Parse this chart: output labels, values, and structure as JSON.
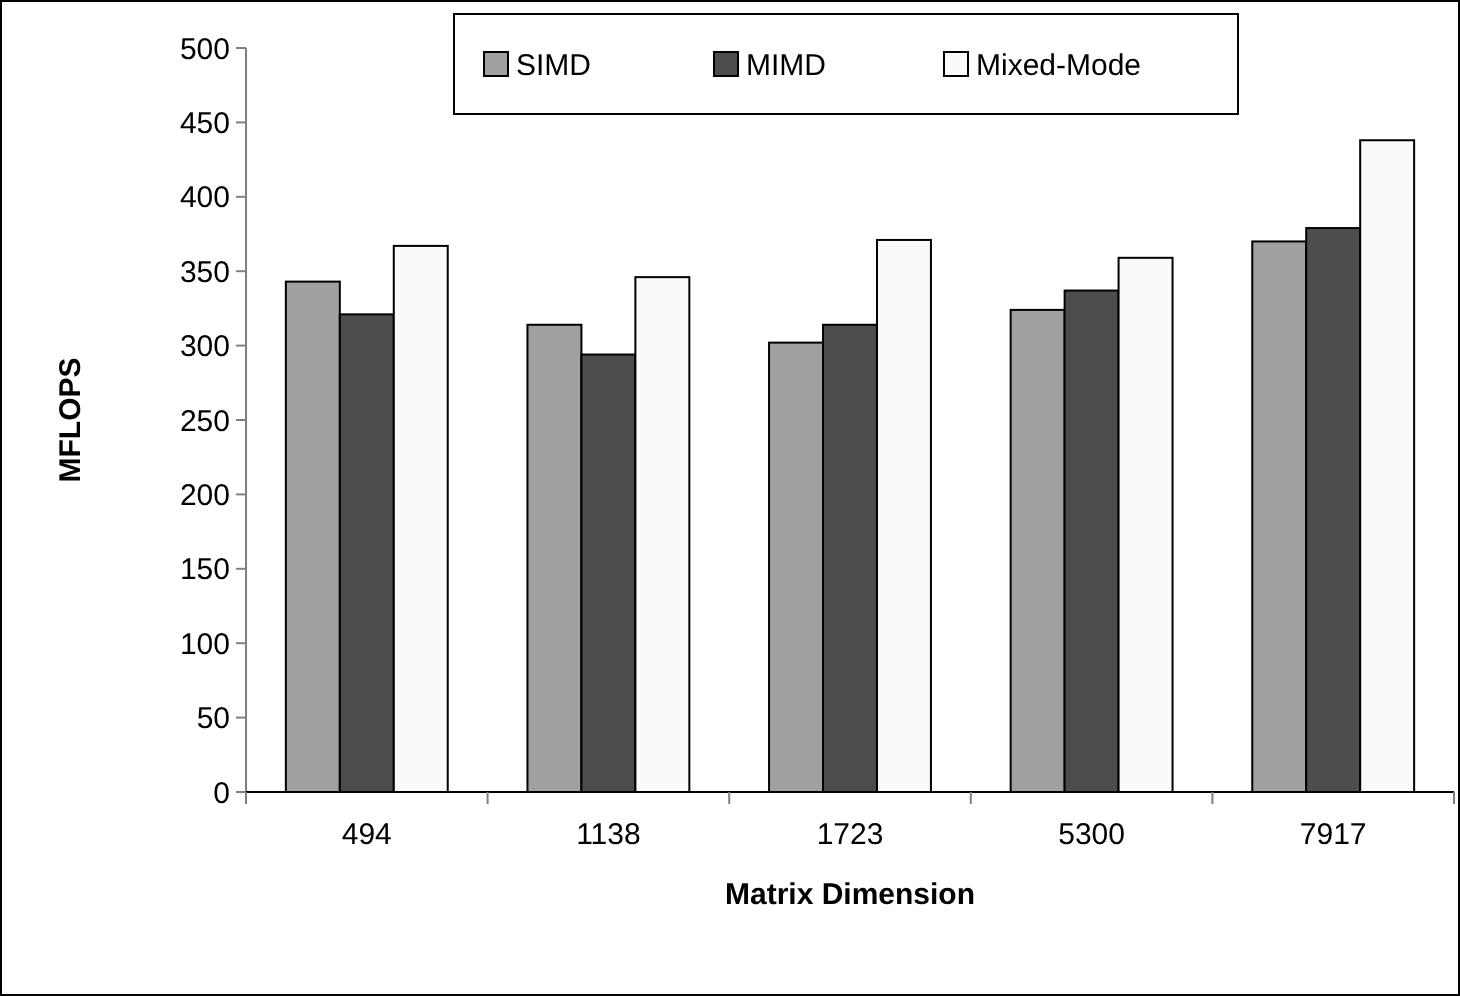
{
  "chart_data": {
    "type": "bar",
    "xlabel": "Matrix Dimension",
    "ylabel": "MFLOPS",
    "categories": [
      "494",
      "1138",
      "1723",
      "5300",
      "7917"
    ],
    "series": [
      {
        "name": "SIMD",
        "color": "#a0a0a0",
        "values": [
          343,
          314,
          302,
          324,
          370
        ]
      },
      {
        "name": "MIMD",
        "color": "#4d4d4d",
        "values": [
          321,
          294,
          314,
          337,
          379
        ]
      },
      {
        "name": "Mixed-Mode",
        "color": "#fafafa",
        "values": [
          367,
          346,
          371,
          359,
          438
        ]
      }
    ],
    "ylim": [
      0,
      500
    ],
    "yticks": [
      0,
      50,
      100,
      150,
      200,
      250,
      300,
      350,
      400,
      450,
      500
    ],
    "grid": false,
    "legend": "top"
  }
}
